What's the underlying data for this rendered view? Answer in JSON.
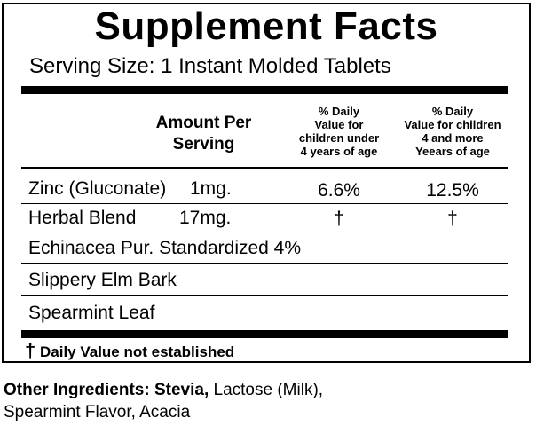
{
  "label": {
    "title": "Supplement Facts",
    "serving_size": "Serving Size:  1 Instant Molded Tablets",
    "headers": {
      "amount": [
        "Amount Per",
        "Serving"
      ],
      "dv_under4": [
        "% Daily",
        "Value for",
        "children under",
        "4 years of age"
      ],
      "dv_4plus": [
        "% Daily",
        "Value for children",
        "4 and more",
        "Yeears of age"
      ]
    },
    "rows": [
      {
        "name": "Zinc (Gluconate)",
        "amount": "1mg.",
        "dv_under4": "6.6%",
        "dv_4plus": "12.5%"
      },
      {
        "name": "Herbal Blend",
        "amount": "17mg.",
        "dv_under4": "†",
        "dv_4plus": "†"
      },
      {
        "name": "Echinacea Pur. Standardized 4%",
        "amount": "",
        "dv_under4": "",
        "dv_4plus": ""
      },
      {
        "name": "Slippery Elm Bark",
        "amount": "",
        "dv_under4": "",
        "dv_4plus": ""
      },
      {
        "name": "Spearmint Leaf",
        "amount": "",
        "dv_under4": "",
        "dv_4plus": ""
      }
    ],
    "footnote": {
      "symbol": "†",
      "text": "Daily Value not established"
    }
  },
  "other_ingredients": {
    "label": "Other Ingredients:",
    "bold_item": "Stevia,",
    "rest_line1": "Lactose (Milk),",
    "line2": "Spearmint Flavor, Acacia"
  }
}
